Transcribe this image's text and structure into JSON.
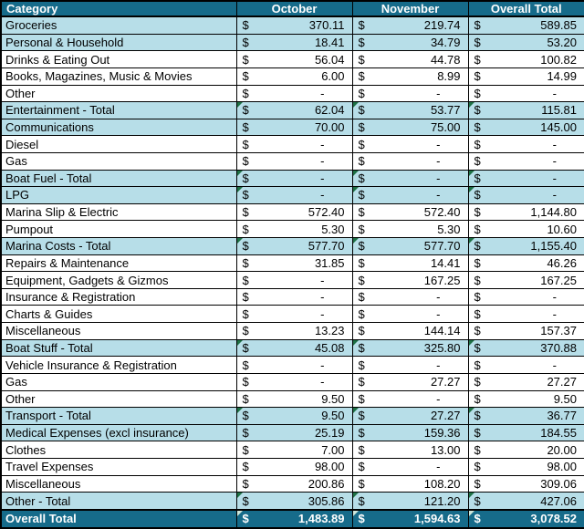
{
  "table": {
    "columns": [
      "Category",
      "October",
      "November",
      "Overall Total"
    ],
    "currency_symbol": "$",
    "empty_value": "-",
    "rows": [
      {
        "category": "Groceries",
        "values": [
          "370.11",
          "219.74",
          "589.85"
        ],
        "style": "highlight",
        "flag": false
      },
      {
        "category": "Personal & Household",
        "values": [
          "18.41",
          "34.79",
          "53.20"
        ],
        "style": "highlight",
        "flag": false
      },
      {
        "category": "Drinks & Eating Out",
        "values": [
          "56.04",
          "44.78",
          "100.82"
        ],
        "style": "normal",
        "flag": false
      },
      {
        "category": "Books, Magazines, Music & Movies",
        "values": [
          "6.00",
          "8.99",
          "14.99"
        ],
        "style": "normal",
        "flag": false
      },
      {
        "category": "Other",
        "values": [
          "-",
          "-",
          "-"
        ],
        "style": "normal",
        "flag": false
      },
      {
        "category": "Entertainment - Total",
        "values": [
          "62.04",
          "53.77",
          "115.81"
        ],
        "style": "highlight",
        "flag": true
      },
      {
        "category": "Communications",
        "values": [
          "70.00",
          "75.00",
          "145.00"
        ],
        "style": "highlight",
        "flag": false
      },
      {
        "category": "Diesel",
        "values": [
          "-",
          "-",
          "-"
        ],
        "style": "normal",
        "flag": false
      },
      {
        "category": "Gas",
        "values": [
          "-",
          "-",
          "-"
        ],
        "style": "normal",
        "flag": false
      },
      {
        "category": "Boat Fuel - Total",
        "values": [
          "-",
          "-",
          "-"
        ],
        "style": "highlight",
        "flag": true
      },
      {
        "category": "LPG",
        "values": [
          "-",
          "-",
          "-"
        ],
        "style": "highlight",
        "flag": true
      },
      {
        "category": "Marina Slip & Electric",
        "values": [
          "572.40",
          "572.40",
          "1,144.80"
        ],
        "style": "normal",
        "flag": false
      },
      {
        "category": "Pumpout",
        "values": [
          "5.30",
          "5.30",
          "10.60"
        ],
        "style": "normal",
        "flag": false
      },
      {
        "category": "Marina Costs - Total",
        "values": [
          "577.70",
          "577.70",
          "1,155.40"
        ],
        "style": "highlight",
        "flag": true
      },
      {
        "category": "Repairs & Maintenance",
        "values": [
          "31.85",
          "14.41",
          "46.26"
        ],
        "style": "normal",
        "flag": false
      },
      {
        "category": "Equipment, Gadgets & Gizmos",
        "values": [
          "-",
          "167.25",
          "167.25"
        ],
        "style": "normal",
        "flag": false
      },
      {
        "category": "Insurance & Registration",
        "values": [
          "-",
          "-",
          "-"
        ],
        "style": "normal",
        "flag": false
      },
      {
        "category": "Charts & Guides",
        "values": [
          "-",
          "-",
          "-"
        ],
        "style": "normal",
        "flag": false
      },
      {
        "category": "Miscellaneous",
        "values": [
          "13.23",
          "144.14",
          "157.37"
        ],
        "style": "normal",
        "flag": false
      },
      {
        "category": "Boat Stuff - Total",
        "values": [
          "45.08",
          "325.80",
          "370.88"
        ],
        "style": "highlight",
        "flag": true
      },
      {
        "category": "Vehicle Insurance & Registration",
        "values": [
          "-",
          "-",
          "-"
        ],
        "style": "normal",
        "flag": false
      },
      {
        "category": "Gas",
        "values": [
          "-",
          "27.27",
          "27.27"
        ],
        "style": "normal",
        "flag": false
      },
      {
        "category": "Other",
        "values": [
          "9.50",
          "-",
          "9.50"
        ],
        "style": "normal",
        "flag": false
      },
      {
        "category": "Transport - Total",
        "values": [
          "9.50",
          "27.27",
          "36.77"
        ],
        "style": "highlight",
        "flag": true
      },
      {
        "category": "Medical Expenses (excl insurance)",
        "values": [
          "25.19",
          "159.36",
          "184.55"
        ],
        "style": "highlight",
        "flag": false
      },
      {
        "category": "Clothes",
        "values": [
          "7.00",
          "13.00",
          "20.00"
        ],
        "style": "normal",
        "flag": false
      },
      {
        "category": "Travel Expenses",
        "values": [
          "98.00",
          "-",
          "98.00"
        ],
        "style": "normal",
        "flag": false
      },
      {
        "category": "Miscellaneous",
        "values": [
          "200.86",
          "108.20",
          "309.06"
        ],
        "style": "normal",
        "flag": false
      },
      {
        "category": "Other - Total",
        "values": [
          "305.86",
          "121.20",
          "427.06"
        ],
        "style": "highlight",
        "flag": true
      },
      {
        "category": "Overall Total",
        "values": [
          "1,483.89",
          "1,594.63",
          "3,078.52"
        ],
        "style": "grand",
        "flag": true
      }
    ]
  },
  "colors": {
    "header_bg": "#166b8a",
    "grand_bg": "#166b8a",
    "highlight_bg": "#b7dee8",
    "normal_bg": "#ffffff",
    "header_text": "#ffffff",
    "body_text": "#000000",
    "border": "#000000",
    "flag_color": "#1e7145",
    "flag_color_dark_row": "#cfe8dc"
  }
}
